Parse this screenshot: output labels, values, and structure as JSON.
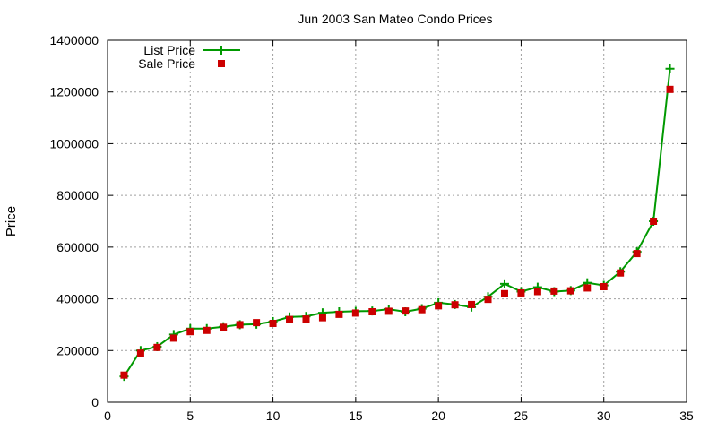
{
  "chart_data": {
    "type": "line",
    "title": "Jun 2003 San Mateo Condo Prices",
    "xlabel": "",
    "ylabel": "Price",
    "xlim": [
      0,
      35
    ],
    "ylim": [
      0,
      1400000
    ],
    "xticks": [
      0,
      5,
      10,
      15,
      20,
      25,
      30,
      35
    ],
    "yticks": [
      0,
      200000,
      400000,
      600000,
      800000,
      1000000,
      1200000,
      1400000
    ],
    "grid": true,
    "legend_position": "top-left",
    "x": [
      1,
      2,
      3,
      4,
      5,
      6,
      7,
      8,
      9,
      10,
      11,
      12,
      13,
      14,
      15,
      16,
      17,
      18,
      19,
      20,
      21,
      22,
      23,
      24,
      25,
      26,
      27,
      28,
      29,
      30,
      31,
      32,
      33,
      34
    ],
    "series": [
      {
        "name": "List Price",
        "style": "line-plus",
        "color": "#009900",
        "values": [
          100000,
          200000,
          215000,
          262000,
          285000,
          285000,
          292000,
          300000,
          302000,
          312000,
          330000,
          332000,
          346000,
          350000,
          352000,
          353000,
          360000,
          350000,
          362000,
          385000,
          378000,
          368000,
          408000,
          458000,
          428000,
          445000,
          428000,
          432000,
          462000,
          452000,
          505000,
          582000,
          700000,
          1290000
        ]
      },
      {
        "name": "Sale Price",
        "style": "square-points",
        "color": "#cc0000",
        "values": [
          105000,
          190000,
          212000,
          248000,
          273000,
          278000,
          290000,
          300000,
          308000,
          305000,
          320000,
          322000,
          327000,
          340000,
          345000,
          350000,
          352000,
          353000,
          358000,
          373000,
          377000,
          378000,
          398000,
          420000,
          423000,
          428000,
          430000,
          431000,
          442000,
          447000,
          500000,
          575000,
          700000,
          1210000
        ]
      }
    ]
  }
}
